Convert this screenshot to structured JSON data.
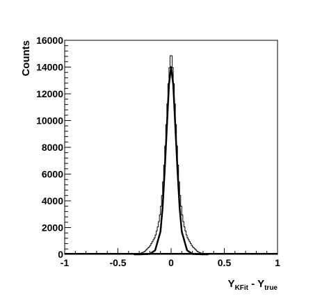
{
  "chart_data": {
    "type": "line",
    "title": "",
    "xlabel": {
      "main": "Y",
      "sub1": "KFit",
      "mid": " - Y",
      "sub2": "true"
    },
    "ylabel": "Counts",
    "xlim": [
      -1,
      1
    ],
    "ylim": [
      0,
      16000
    ],
    "x_ticks": [
      -1,
      -0.5,
      0,
      0.5,
      1
    ],
    "x_tick_labels": [
      "-1",
      "-0.5",
      "0",
      "0.5",
      "1"
    ],
    "y_ticks": [
      0,
      2000,
      4000,
      6000,
      8000,
      10000,
      12000,
      14000,
      16000
    ],
    "y_tick_labels": [
      "0",
      "2000",
      "4000",
      "6000",
      "8000",
      "10000",
      "12000",
      "14000",
      "16000"
    ],
    "grid": false,
    "series": [
      {
        "style": "histogram",
        "bin_width": 0.01,
        "x_bin_centers": [
          -0.3,
          -0.25,
          -0.2,
          -0.15,
          -0.12,
          -0.1,
          -0.08,
          -0.06,
          -0.04,
          -0.02,
          0,
          0.02,
          0.04,
          0.06,
          0.08,
          0.1,
          0.12,
          0.15,
          0.2,
          0.25,
          0.3
        ],
        "values": [
          40,
          200,
          600,
          1300,
          2200,
          3200,
          4800,
          7300,
          10500,
          13500,
          15300,
          13500,
          10500,
          7300,
          4800,
          3200,
          2200,
          1300,
          600,
          200,
          40
        ]
      },
      {
        "style": "fit-curve",
        "x": [
          -0.3,
          -0.2,
          -0.15,
          -0.1,
          -0.08,
          -0.06,
          -0.04,
          -0.02,
          0,
          0.02,
          0.04,
          0.06,
          0.08,
          0.1,
          0.15,
          0.2,
          0.3
        ],
        "values": [
          0,
          30,
          300,
          1700,
          3500,
          6300,
          9500,
          12700,
          14000,
          12700,
          9500,
          6300,
          3500,
          1700,
          300,
          30,
          0
        ]
      }
    ]
  }
}
